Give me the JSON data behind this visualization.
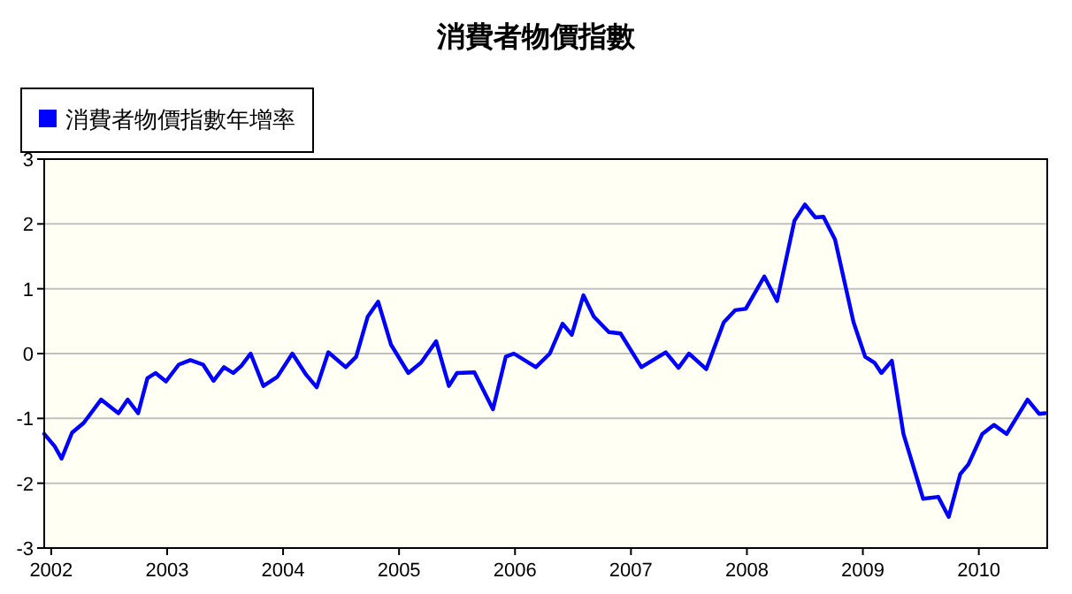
{
  "chart_data": {
    "type": "line",
    "title": "消費者物價指數",
    "series": [
      {
        "name": "消費者物價指數年增率",
        "color": "#0000ff",
        "x": [
          2001.94,
          2002.03,
          2002.09,
          2002.18,
          2002.28,
          2002.43,
          2002.58,
          2002.66,
          2002.75,
          2002.83,
          2002.9,
          2002.99,
          2003.1,
          2003.2,
          2003.31,
          2003.4,
          2003.49,
          2003.57,
          2003.64,
          2003.72,
          2003.83,
          2003.95,
          2004.08,
          2004.2,
          2004.29,
          2004.39,
          2004.54,
          2004.63,
          2004.73,
          2004.82,
          2004.93,
          2005.08,
          2005.19,
          2005.32,
          2005.43,
          2005.5,
          2005.65,
          2005.81,
          2005.92,
          2005.99,
          2006.18,
          2006.3,
          2006.41,
          2006.49,
          2006.59,
          2006.68,
          2006.81,
          2006.91,
          2007.09,
          2007.3,
          2007.41,
          2007.5,
          2007.65,
          2007.8,
          2007.9,
          2007.99,
          2008.15,
          2008.26,
          2008.41,
          2008.5,
          2008.59,
          2008.66,
          2008.76,
          2008.92,
          2009.02,
          2009.1,
          2009.16,
          2009.25,
          2009.35,
          2009.52,
          2009.65,
          2009.74,
          2009.84,
          2009.91,
          2010.03,
          2010.13,
          2010.24,
          2010.42,
          2010.52,
          2010.57
        ],
        "values": [
          -1.24,
          -1.43,
          -1.62,
          -1.22,
          -1.07,
          -0.71,
          -0.92,
          -0.71,
          -0.92,
          -0.38,
          -0.3,
          -0.43,
          -0.17,
          -0.1,
          -0.17,
          -0.42,
          -0.21,
          -0.3,
          -0.19,
          0,
          -0.5,
          -0.36,
          0,
          -0.33,
          -0.52,
          0.02,
          -0.21,
          -0.05,
          0.57,
          0.8,
          0.14,
          -0.3,
          -0.14,
          0.19,
          -0.5,
          -0.3,
          -0.29,
          -0.86,
          -0.05,
          0,
          -0.21,
          0,
          0.46,
          0.29,
          0.9,
          0.57,
          0.33,
          0.31,
          -0.21,
          0.02,
          -0.22,
          0,
          -0.24,
          0.48,
          0.67,
          0.69,
          1.19,
          0.81,
          2.05,
          2.3,
          2.1,
          2.11,
          1.76,
          0.48,
          -0.05,
          -0.14,
          -0.3,
          -0.11,
          -1.24,
          -2.24,
          -2.21,
          -2.52,
          -1.86,
          -1.71,
          -1.24,
          -1.1,
          -1.24,
          -0.71,
          -0.93,
          -0.92
        ]
      }
    ],
    "xlim": [
      2001.94,
      2010.59
    ],
    "xticks": [
      2002,
      2003,
      2004,
      2005,
      2006,
      2007,
      2008,
      2009,
      2010
    ],
    "ylim": [
      -3,
      3
    ],
    "yticks": [
      -3,
      -2,
      -1,
      0,
      1,
      2,
      3
    ],
    "grid": "y",
    "legend": "top left"
  }
}
